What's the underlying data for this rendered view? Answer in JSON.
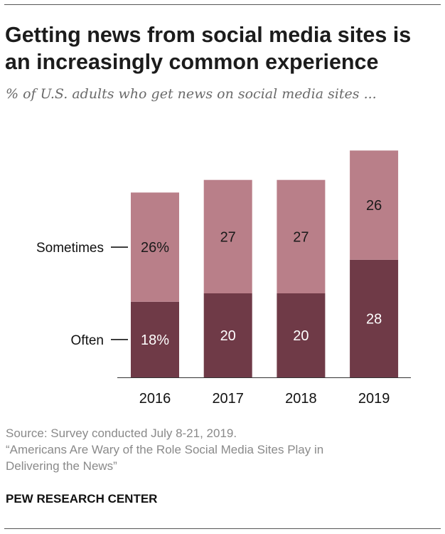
{
  "header": {
    "title": "Getting news from social media sites is an increasingly common experience",
    "subtitle": "% of U.S. adults who get news on social media sites ..."
  },
  "chart_data": {
    "type": "bar",
    "stacked": true,
    "categories": [
      "2016",
      "2017",
      "2018",
      "2019"
    ],
    "series": [
      {
        "name": "Often",
        "values": [
          18,
          20,
          20,
          28
        ],
        "labels": [
          "18%",
          "20",
          "20",
          "28"
        ],
        "color": "#6f3a47",
        "label_color": "#ffffff"
      },
      {
        "name": "Sometimes",
        "values": [
          26,
          27,
          27,
          26
        ],
        "labels": [
          "26%",
          "27",
          "27",
          "26"
        ],
        "color": "#b97f89",
        "label_color": "#1a1a1a"
      }
    ],
    "legend": "left, inline labels beside first bar",
    "grid": false
  },
  "footer": {
    "source": "Source: Survey conducted July 8-21, 2019.",
    "report_line1": "“Americans Are Wary of the Role Social Media Sites Play in",
    "report_line2": "Delivering the News”",
    "brand": "PEW RESEARCH CENTER"
  },
  "colors": {
    "axis": "#333333",
    "leader_line": "#000000"
  }
}
